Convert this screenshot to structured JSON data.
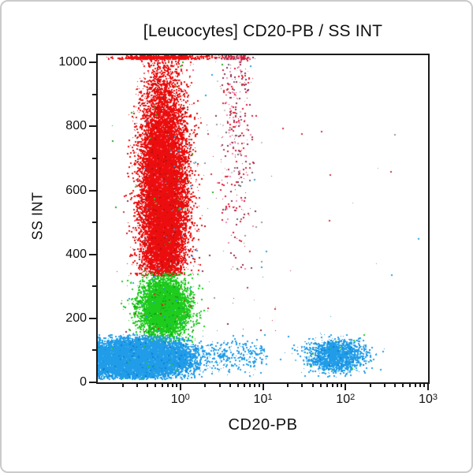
{
  "frame": {
    "background": "#ffffff",
    "border_color": "#cbcbcb"
  },
  "chart_data": {
    "type": "scatter",
    "title": "[Leucocytes] CD20-PB / SS INT",
    "xlabel": "CD20-PB",
    "ylabel": "SS INT",
    "x_scale": "log",
    "x_range_decades": [
      -1,
      3
    ],
    "x_tick_base": "10",
    "x_major_tick_exponents": [
      0,
      1,
      2,
      3
    ],
    "y_range": [
      0,
      1023
    ],
    "y_major_ticks": [
      0,
      200,
      400,
      600,
      800,
      1000
    ],
    "y_minor_step": 100,
    "grid": false,
    "legend": "none",
    "axis_color": "#1a1a1a",
    "point_colors": {
      "red": "#ec0e0e",
      "green": "#1ecc1e",
      "blue": "#219ce8"
    },
    "populations": [
      {
        "name": "granulocytes-top-pileup",
        "color": "#ec0e0e",
        "count": 600,
        "x_log_mean": -0.21,
        "x_log_sd": 0.28,
        "y_mean": 1100,
        "y_sd": 60,
        "y_min": 1012,
        "y_max": 1023,
        "pileup_top": true
      },
      {
        "name": "granulocytes-main",
        "color": "#ec0e0e",
        "count": 15000,
        "x_log_mean": -0.21,
        "x_log_sd": 0.135,
        "y_mean": 580,
        "y_sd": 185,
        "y_min": 335,
        "y_max": 1023,
        "speckle": [
          [
            "#b50d0d",
            0.06
          ],
          [
            "#ff5577",
            0.02
          ],
          [
            "#1ecc1e",
            0.004
          ],
          [
            "#29a3e3",
            0.004
          ]
        ]
      },
      {
        "name": "dim-positive-scatter",
        "color": "#e11b33",
        "count": 430,
        "x_log_mean": 0.66,
        "x_log_sd": 0.1,
        "y_mean": 830,
        "y_sd": 230,
        "y_min": 355,
        "y_max": 1023,
        "pileup_top": true,
        "speckle": [
          [
            "#8e2f52",
            0.2
          ],
          [
            "#f585b5",
            0.15
          ],
          [
            "#6d6d6d",
            0.08
          ],
          [
            "#c9c9c9",
            0.05
          ]
        ]
      },
      {
        "name": "noise-mid",
        "count": 120,
        "x_uniform": [
          -0.9,
          1.15
        ],
        "y_uniform": [
          150,
          1010
        ],
        "colors": [
          "#cc3344",
          "#8e2f52",
          "#999999",
          "#22aa22",
          "#2a9fe0"
        ]
      },
      {
        "name": "noise-right",
        "count": 14,
        "x_uniform": [
          1.2,
          2.9
        ],
        "y_uniform": [
          150,
          900
        ],
        "colors": [
          "#cc3344",
          "#999999",
          "#2a9fe0"
        ]
      },
      {
        "name": "monocytes",
        "color": "#1ecc1e",
        "count": 5200,
        "x_log_mean": -0.2,
        "x_log_sd": 0.145,
        "y_mean": 235,
        "y_sd": 48,
        "y_min": 128,
        "y_max": 345,
        "speckle": [
          [
            "#0fa60f",
            0.05
          ],
          [
            "#ec0e0e",
            0.01
          ],
          [
            "#219ce8",
            0.008
          ]
        ]
      },
      {
        "name": "lymphocyte-tail",
        "color": "#219ce8",
        "count": 430,
        "x_uniform": [
          -0.15,
          1.05
        ],
        "y_mean": 85,
        "y_sd": 26,
        "y_min": 20,
        "y_max": 150
      },
      {
        "name": "lymphocytes",
        "color": "#219ce8",
        "count": 13500,
        "x_log_mean": -0.52,
        "x_log_sd": 0.28,
        "x_log_min": -1,
        "pileup_left": true,
        "y_mean": 76,
        "y_sd": 28,
        "y_min": 12,
        "y_max": 152,
        "speckle": [
          [
            "#0b7fd4",
            0.05
          ],
          [
            "#66c6f2",
            0.03
          ],
          [
            "#1ecc1e",
            0.006
          ]
        ]
      },
      {
        "name": "cd20-positive-cells",
        "color": "#219ce8",
        "count": 1700,
        "x_log_mean": 1.88,
        "x_log_sd": 0.17,
        "y_mean": 85,
        "y_sd": 25,
        "y_min": 18,
        "y_max": 155,
        "speckle": [
          [
            "#0b7fd4",
            0.06
          ],
          [
            "#66c6f2",
            0.04
          ],
          [
            "#1ecc1e",
            0.01
          ]
        ]
      }
    ]
  }
}
